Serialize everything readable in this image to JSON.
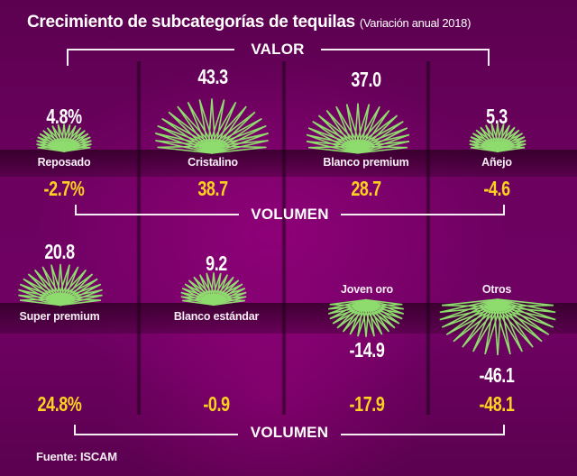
{
  "title": "Crecimiento de subcategorías de tequilas",
  "subtitle": "(Variación anual 2018)",
  "labels": {
    "valor": "VALOR",
    "volumen_top": "VOLUMEN",
    "volumen_bottom": "VOLUMEN"
  },
  "source": "Fuente: ISCAM",
  "colors": {
    "background": "#6d0160",
    "agave": "#8fdc6e",
    "value_text": "#ffffff",
    "volume_text": "#ffd21f"
  },
  "chart_data": {
    "type": "table",
    "title": "Crecimiento de subcategorías de tequilas",
    "subtitle": "(Variación anual 2018)",
    "measures": [
      "Valor",
      "Volumen"
    ],
    "unit": "% variación anual",
    "rows": [
      [
        {
          "category": "Reposado",
          "valor": 4.8,
          "valor_label": "4.8%",
          "volumen": -2.7,
          "volumen_label": "-2.7%"
        },
        {
          "category": "Cristalino",
          "valor": 43.3,
          "valor_label": "43.3",
          "volumen": 38.7,
          "volumen_label": "38.7"
        },
        {
          "category": "Blanco premium",
          "valor": 37.0,
          "valor_label": "37.0",
          "volumen": 28.7,
          "volumen_label": "28.7"
        },
        {
          "category": "Añejo",
          "valor": 5.3,
          "valor_label": "5.3",
          "volumen": -4.6,
          "volumen_label": "-4.6"
        }
      ],
      [
        {
          "category": "Super premium",
          "valor": 20.8,
          "valor_label": "20.8",
          "volumen": 24.8,
          "volumen_label": "24.8%"
        },
        {
          "category": "Blanco estándar",
          "valor": 9.2,
          "valor_label": "9.2",
          "volumen": -0.9,
          "volumen_label": "-0.9"
        },
        {
          "category": "Joven oro",
          "valor": -14.9,
          "valor_label": "-14.9",
          "volumen": -17.9,
          "volumen_label": "-17.9"
        },
        {
          "category": "Otros",
          "valor": -46.1,
          "valor_label": "-46.1",
          "volumen": -48.1,
          "volumen_label": "-48.1"
        }
      ]
    ]
  }
}
